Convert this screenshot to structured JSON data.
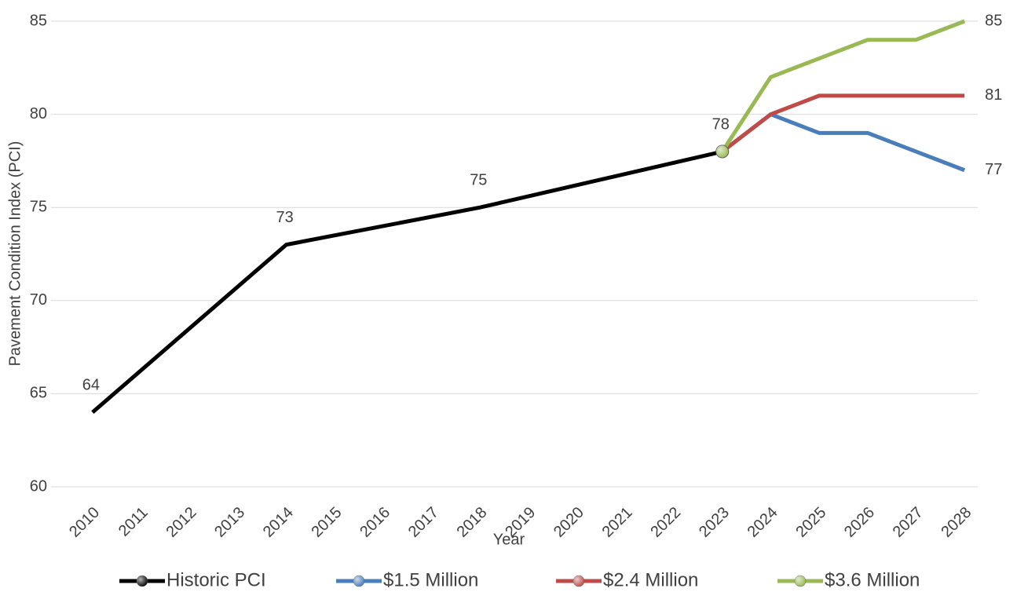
{
  "chart_data": {
    "type": "line",
    "x_label": "Year",
    "y_label": "Pavement Condition Index (PCI)",
    "xlim": [
      2009.5,
      2028.5
    ],
    "xticks": [
      2010,
      2011,
      2012,
      2013,
      2014,
      2015,
      2016,
      2017,
      2018,
      2019,
      2020,
      2021,
      2022,
      2023,
      2024,
      2025,
      2026,
      2027,
      2028
    ],
    "ylim": [
      60,
      85
    ],
    "yticks": [
      60,
      65,
      70,
      75,
      80,
      85
    ],
    "grid": true,
    "legend": "bottom",
    "series": [
      {
        "name": "Historic PCI",
        "color": "#000000",
        "x": [
          2010,
          2014,
          2018,
          2023
        ],
        "values": [
          64,
          73,
          75,
          78
        ],
        "data_labels": "all"
      },
      {
        "name": "$1.5 Million",
        "color": "#4a7ebb",
        "x": [
          2023,
          2024,
          2025,
          2026,
          2027,
          2028
        ],
        "values": [
          78,
          80,
          79,
          79,
          78,
          77
        ],
        "data_labels": "last"
      },
      {
        "name": "$2.4 Million",
        "color": "#be4b48",
        "x": [
          2023,
          2024,
          2025,
          2026,
          2027,
          2028
        ],
        "values": [
          78,
          80,
          81,
          81,
          81,
          81
        ],
        "data_labels": "last"
      },
      {
        "name": "$3.6 Million",
        "color": "#98b954",
        "x": [
          2023,
          2024,
          2025,
          2026,
          2027,
          2028
        ],
        "values": [
          78,
          82,
          83,
          84,
          84,
          85
        ],
        "data_labels": "last",
        "marker": "first"
      }
    ]
  }
}
